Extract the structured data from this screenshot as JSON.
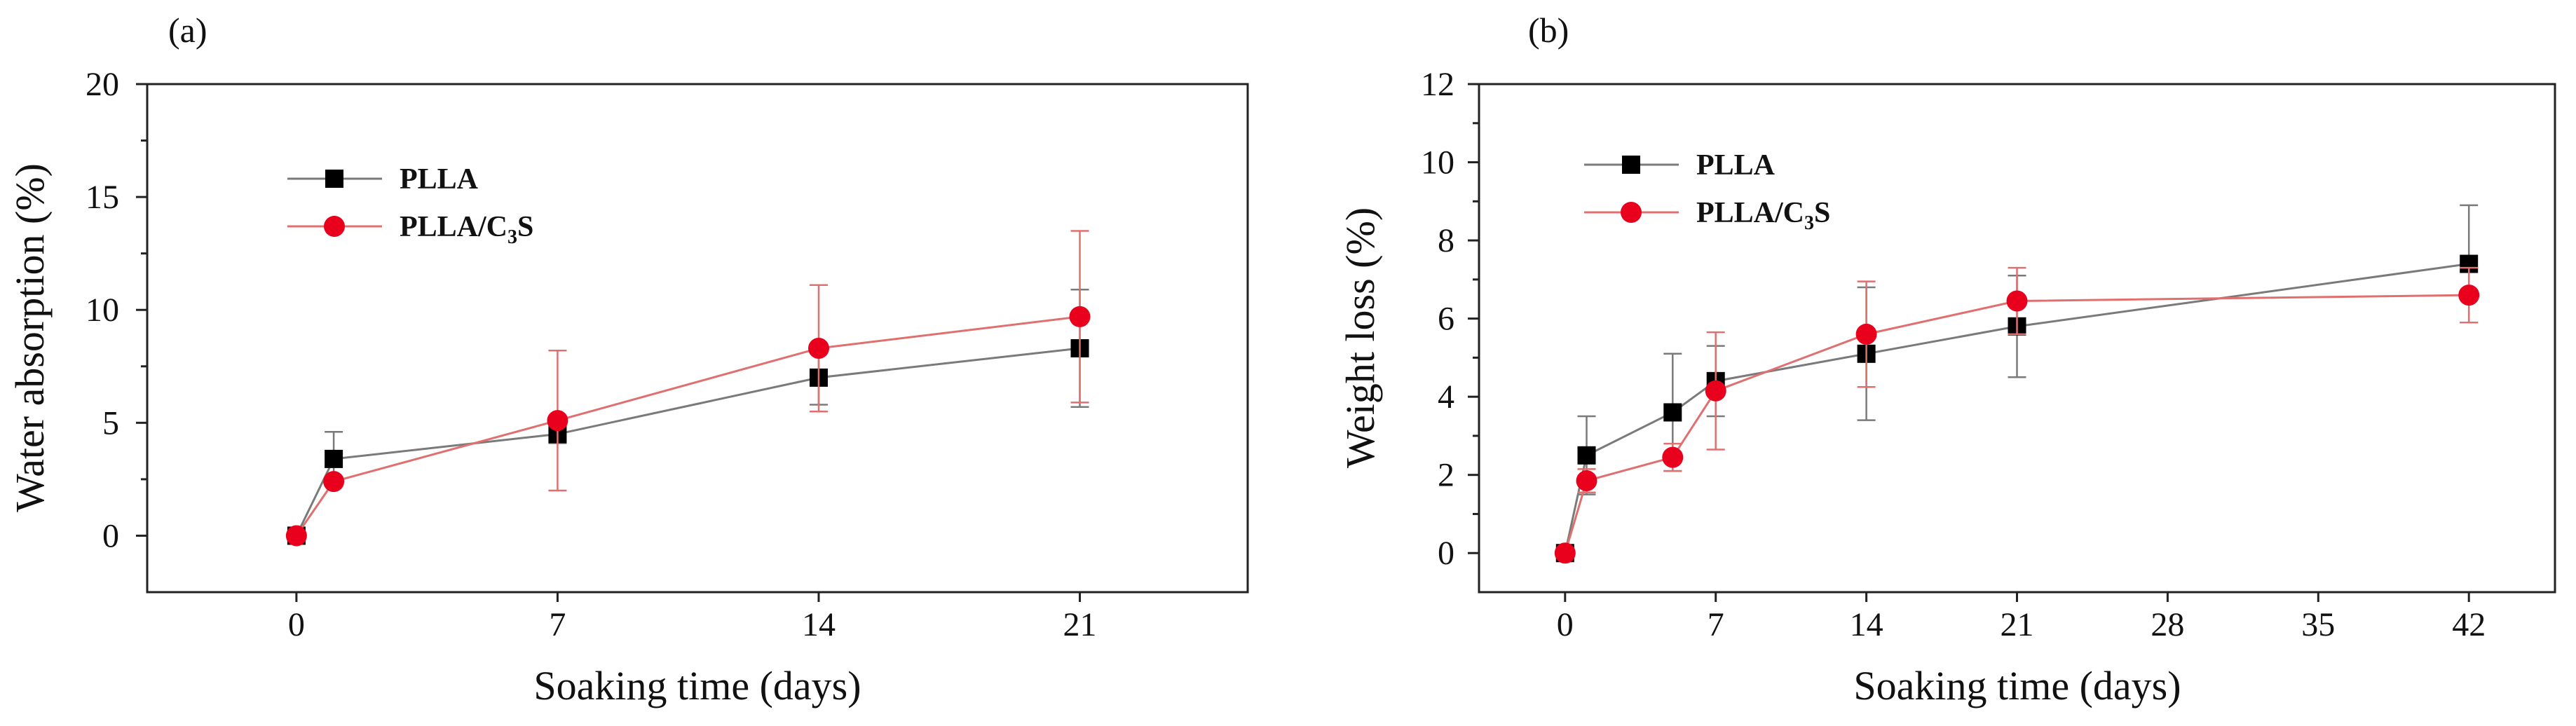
{
  "chart_data": [
    {
      "type": "line",
      "panel_label": "(a)",
      "xlabel": "Soaking time (days)",
      "ylabel": "Water absorption (%)",
      "xlim": [
        -4,
        25.5
      ],
      "ylim": [
        -2.5,
        20
      ],
      "x_ticks": [
        0,
        7,
        14,
        21
      ],
      "x_tick_labels": [
        "0",
        "7",
        "14",
        "21"
      ],
      "y_ticks": [
        0,
        5,
        10,
        15,
        20
      ],
      "y_tick_labels": [
        "0",
        "5",
        "10",
        "15",
        "20"
      ],
      "series": [
        {
          "name": "PLLA",
          "name_main": "PLLA",
          "name_sub": "",
          "name_tail": "",
          "color": "#000000",
          "line_color": "#7a7a7a",
          "marker": "square",
          "x": [
            0,
            1,
            7,
            14,
            21
          ],
          "y": [
            0,
            3.4,
            4.5,
            7.0,
            8.3
          ],
          "err": [
            0,
            1.2,
            0.4,
            1.2,
            2.6
          ]
        },
        {
          "name": "PLLA/C3S",
          "name_main": "PLLA/C",
          "name_sub": "3",
          "name_tail": "S",
          "color": "#e8001c",
          "line_color": "#e07070",
          "marker": "circle",
          "x": [
            0,
            1,
            7,
            14,
            21
          ],
          "y": [
            0,
            2.4,
            5.1,
            8.3,
            9.7
          ],
          "err": [
            0,
            0.2,
            3.1,
            2.8,
            3.8
          ]
        }
      ]
    },
    {
      "type": "line",
      "panel_label": "(b)",
      "xlabel": "Soaking time (days)",
      "ylabel": "Weight loss (%)",
      "xlim": [
        -4,
        46
      ],
      "ylim": [
        -1,
        12
      ],
      "x_ticks": [
        0,
        7,
        14,
        21,
        28,
        35,
        42
      ],
      "x_tick_labels": [
        "0",
        "7",
        "14",
        "21",
        "28",
        "35",
        "42"
      ],
      "y_ticks": [
        0,
        2,
        4,
        6,
        8,
        10,
        12
      ],
      "y_tick_labels": [
        "0",
        "2",
        "4",
        "6",
        "8",
        "10",
        "12"
      ],
      "series": [
        {
          "name": "PLLA",
          "name_main": "PLLA",
          "name_sub": "",
          "name_tail": "",
          "color": "#000000",
          "line_color": "#7a7a7a",
          "marker": "square",
          "x": [
            0,
            1,
            5,
            7,
            14,
            21,
            42
          ],
          "y": [
            0,
            2.5,
            3.6,
            4.4,
            5.1,
            5.8,
            7.4
          ],
          "err": [
            0,
            1.0,
            1.5,
            0.9,
            1.7,
            1.3,
            1.5
          ]
        },
        {
          "name": "PLLA/C3S",
          "name_main": "PLLA/C",
          "name_sub": "3",
          "name_tail": "S",
          "color": "#e8001c",
          "line_color": "#e07070",
          "marker": "circle",
          "x": [
            0,
            1,
            5,
            7,
            14,
            21,
            42
          ],
          "y": [
            0,
            1.85,
            2.45,
            4.15,
            5.6,
            6.45,
            6.6
          ],
          "err": [
            0,
            0.3,
            0.35,
            1.5,
            1.35,
            0.85,
            0.7
          ]
        }
      ]
    }
  ]
}
